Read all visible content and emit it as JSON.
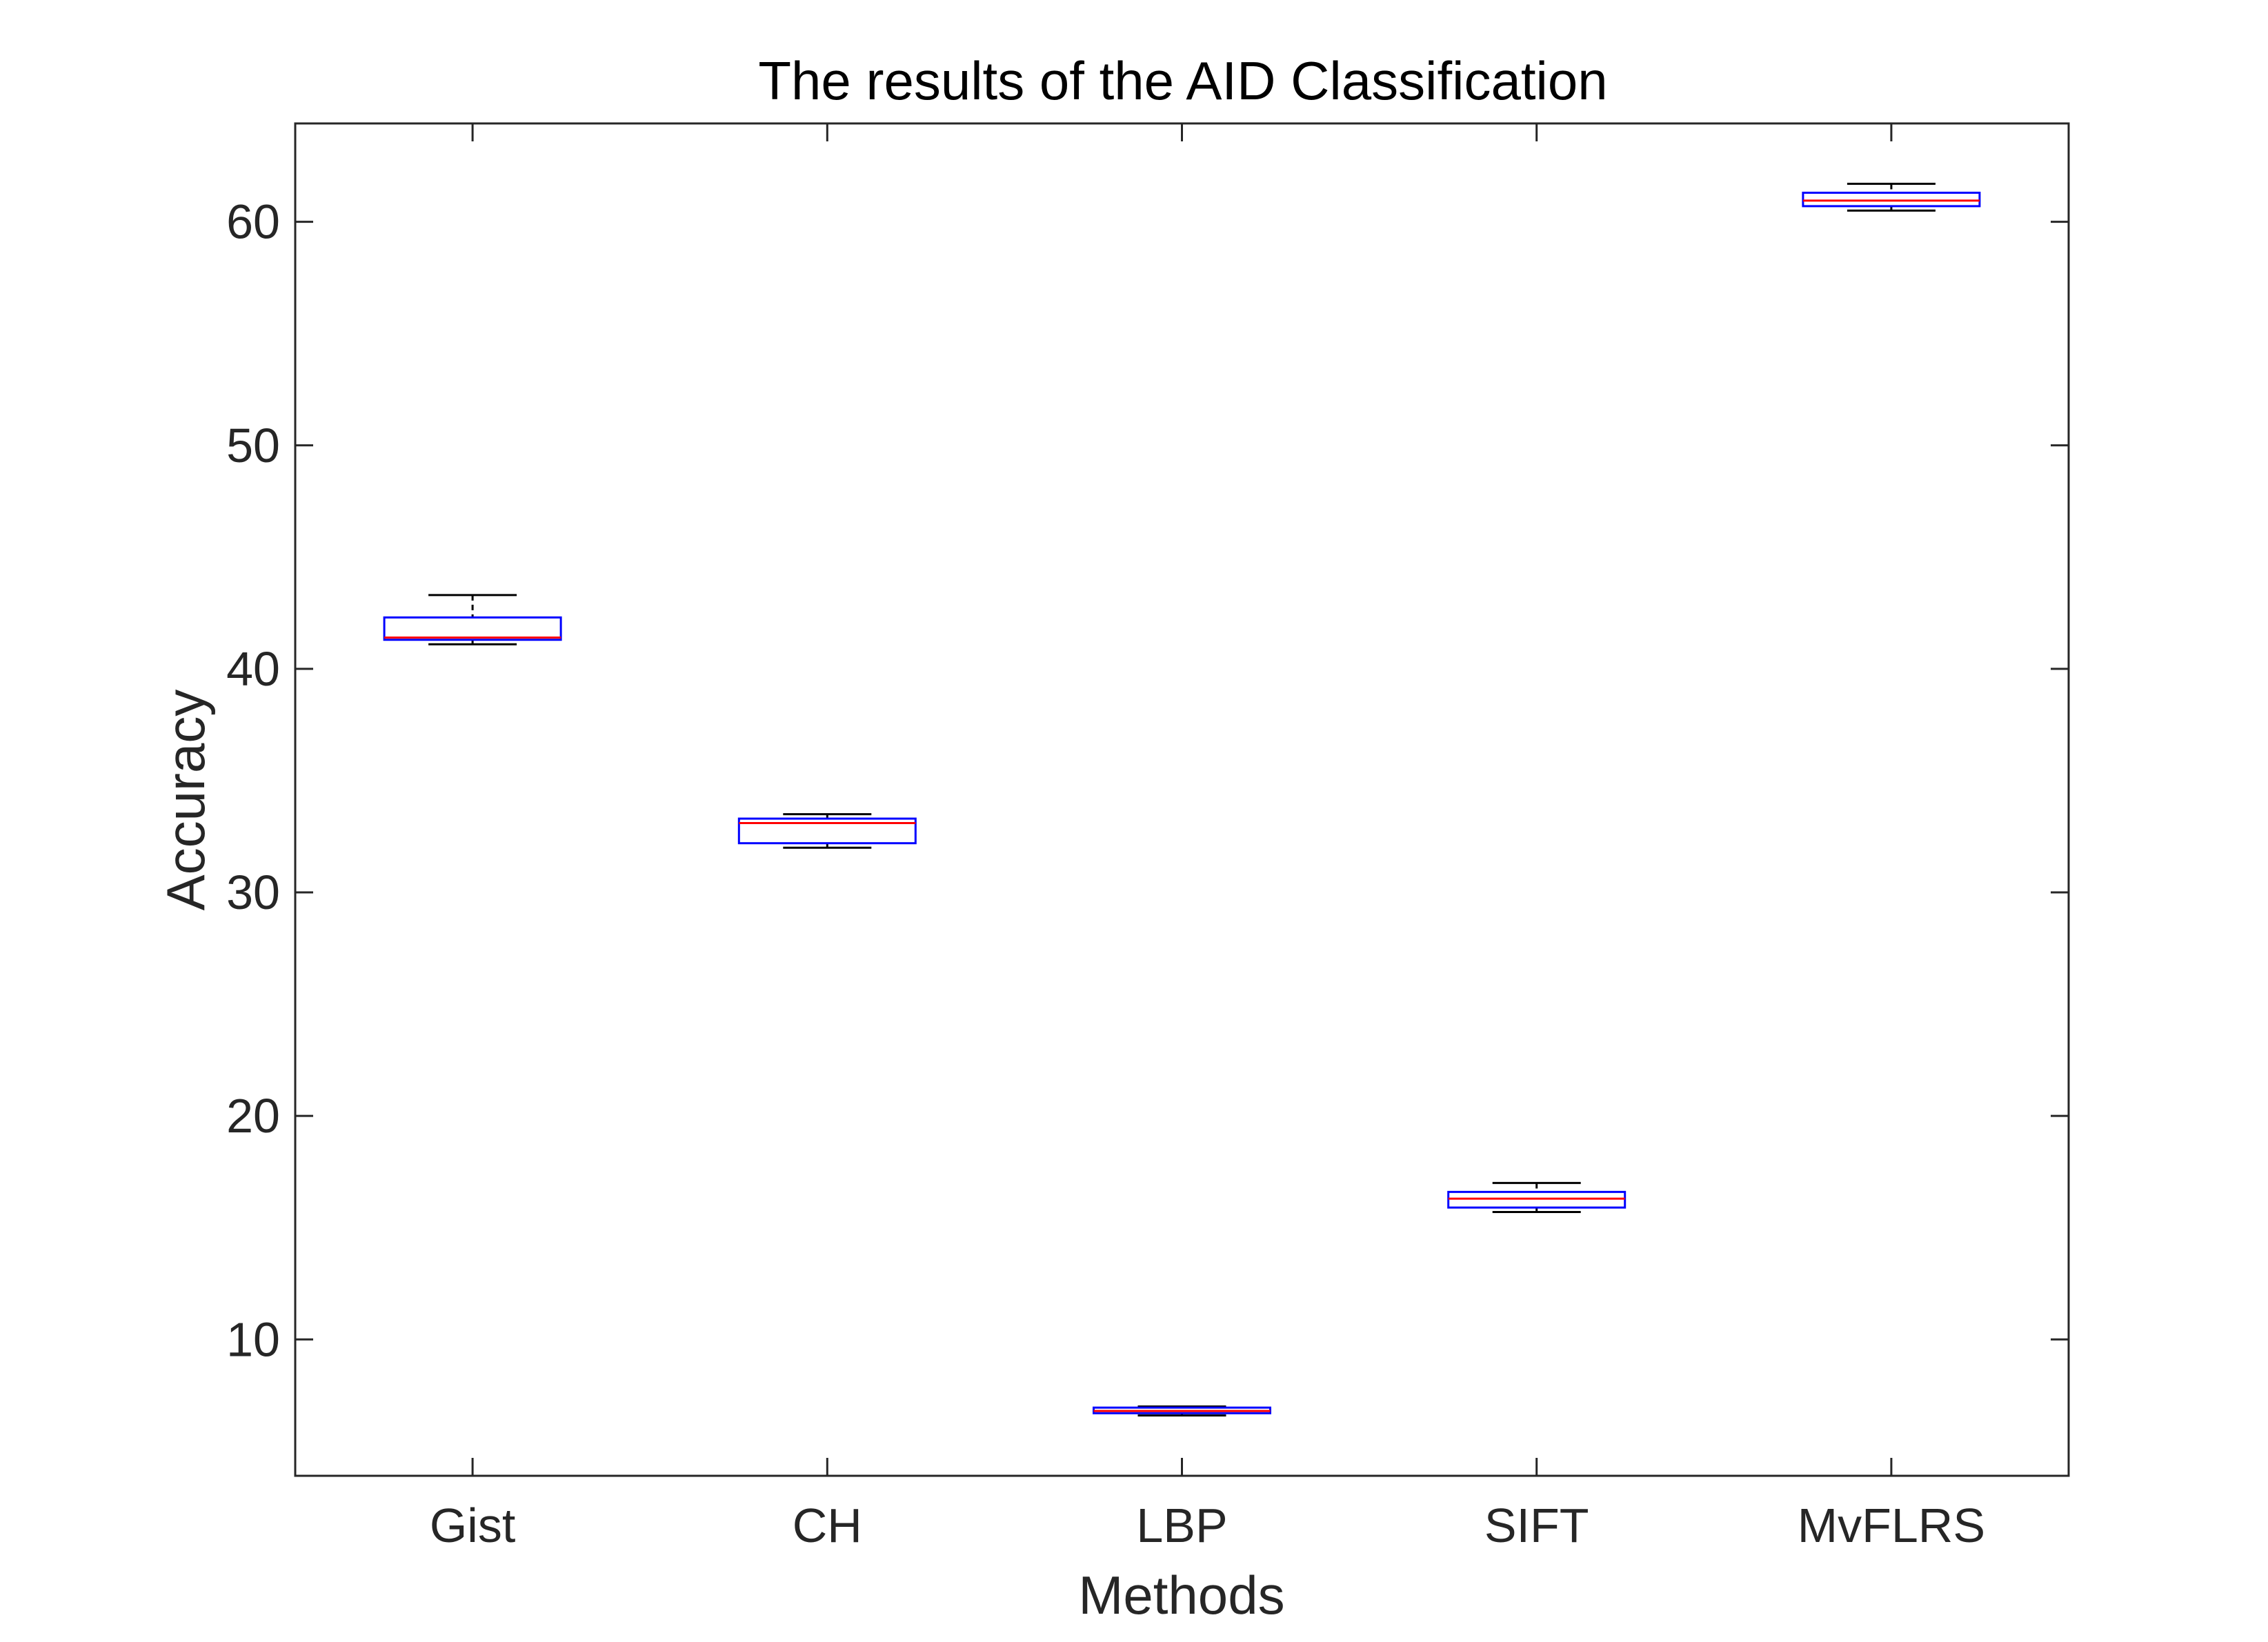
{
  "chart_data": {
    "type": "boxplot",
    "title": "The results of the AID Classification",
    "xlabel": "Methods",
    "ylabel": "Accuracy",
    "ylim": [
      3.9,
      64.4
    ],
    "yticks": [
      10,
      20,
      30,
      40,
      50,
      60
    ],
    "grid": false,
    "legend": "none",
    "categories": [
      "Gist",
      "CH",
      "LBP",
      "SIFT",
      "MvFLRS"
    ],
    "boxes": [
      {
        "label": "Gist",
        "min": 41.1,
        "q1": 41.3,
        "median": 41.4,
        "q3": 42.3,
        "max": 43.3
      },
      {
        "label": "CH",
        "min": 32.0,
        "q1": 32.2,
        "median": 33.1,
        "q3": 33.3,
        "max": 33.5
      },
      {
        "label": "LBP",
        "min": 6.6,
        "q1": 6.7,
        "median": 6.8,
        "q3": 6.95,
        "max": 7.0
      },
      {
        "label": "SIFT",
        "min": 15.7,
        "q1": 15.9,
        "median": 16.3,
        "q3": 16.6,
        "max": 17.0
      },
      {
        "label": "MvFLRS",
        "min": 60.5,
        "q1": 60.7,
        "median": 60.95,
        "q3": 61.3,
        "max": 61.7
      }
    ],
    "colors": {
      "box": "#0000ff",
      "median": "#ff0000",
      "whisker": "#000000",
      "axes": "#262626"
    }
  }
}
